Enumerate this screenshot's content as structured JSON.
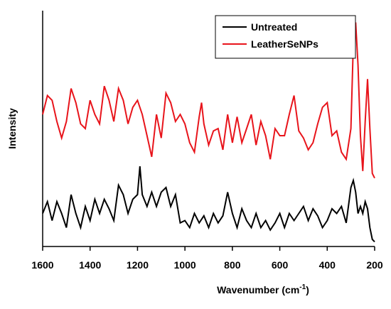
{
  "chart_data": {
    "type": "line",
    "x_label": [
      "Wavenumber (cm",
      "-1",
      ")"
    ],
    "y_label": "Intensity",
    "xlim": [
      1600,
      200
    ],
    "xticks": [
      1600,
      1400,
      1200,
      1000,
      800,
      600,
      400,
      200
    ],
    "ylim": [
      0,
      100
    ],
    "legend": "top-right",
    "series": [
      {
        "name": "Untreated",
        "color": "#000000",
        "x": [
          1600,
          1580,
          1560,
          1540,
          1520,
          1500,
          1480,
          1460,
          1440,
          1420,
          1400,
          1380,
          1360,
          1340,
          1320,
          1300,
          1280,
          1260,
          1240,
          1220,
          1200,
          1190,
          1180,
          1160,
          1140,
          1120,
          1100,
          1080,
          1060,
          1040,
          1020,
          1000,
          980,
          960,
          940,
          920,
          900,
          880,
          860,
          840,
          820,
          800,
          780,
          760,
          740,
          720,
          700,
          680,
          660,
          640,
          620,
          600,
          580,
          560,
          540,
          520,
          500,
          480,
          460,
          440,
          420,
          400,
          380,
          360,
          340,
          320,
          300,
          290,
          280,
          270,
          260,
          250,
          240,
          230,
          220,
          210,
          200
        ],
        "values": [
          14,
          19,
          11,
          19,
          14,
          8,
          22,
          14,
          8,
          17,
          11,
          20,
          14,
          20,
          16,
          11,
          26,
          22,
          14,
          20,
          22,
          34,
          22,
          17,
          23,
          17,
          23,
          25,
          17,
          22,
          10,
          11,
          8,
          14,
          10,
          13,
          8,
          14,
          10,
          13,
          23,
          14,
          8,
          16,
          11,
          8,
          14,
          8,
          11,
          7,
          10,
          14,
          8,
          14,
          11,
          14,
          17,
          11,
          16,
          13,
          8,
          11,
          16,
          14,
          17,
          10,
          25,
          28,
          23,
          14,
          17,
          14,
          19,
          16,
          8,
          3,
          2
        ]
      },
      {
        "name": "LeatherSeNPs",
        "color": "#e8141b",
        "x": [
          1600,
          1580,
          1560,
          1540,
          1520,
          1500,
          1480,
          1460,
          1440,
          1420,
          1400,
          1380,
          1360,
          1340,
          1320,
          1300,
          1280,
          1260,
          1240,
          1220,
          1200,
          1180,
          1160,
          1140,
          1120,
          1100,
          1080,
          1060,
          1040,
          1020,
          1000,
          980,
          960,
          940,
          930,
          920,
          900,
          880,
          860,
          840,
          820,
          800,
          780,
          760,
          740,
          720,
          700,
          680,
          660,
          640,
          620,
          600,
          580,
          560,
          540,
          520,
          500,
          480,
          460,
          440,
          420,
          400,
          380,
          360,
          340,
          320,
          300,
          290,
          280,
          270,
          260,
          250,
          240,
          230,
          220,
          210,
          200
        ],
        "values": [
          56,
          64,
          62,
          53,
          46,
          53,
          67,
          61,
          52,
          50,
          62,
          56,
          52,
          68,
          62,
          53,
          67,
          62,
          52,
          59,
          62,
          56,
          47,
          38,
          56,
          46,
          65,
          61,
          53,
          56,
          52,
          44,
          40,
          55,
          61,
          52,
          43,
          49,
          50,
          41,
          56,
          44,
          55,
          44,
          50,
          56,
          43,
          53,
          47,
          37,
          50,
          47,
          47,
          56,
          64,
          49,
          46,
          41,
          44,
          52,
          59,
          61,
          47,
          49,
          40,
          37,
          50,
          86,
          95,
          77,
          47,
          32,
          53,
          71,
          50,
          31,
          29
        ]
      }
    ]
  }
}
